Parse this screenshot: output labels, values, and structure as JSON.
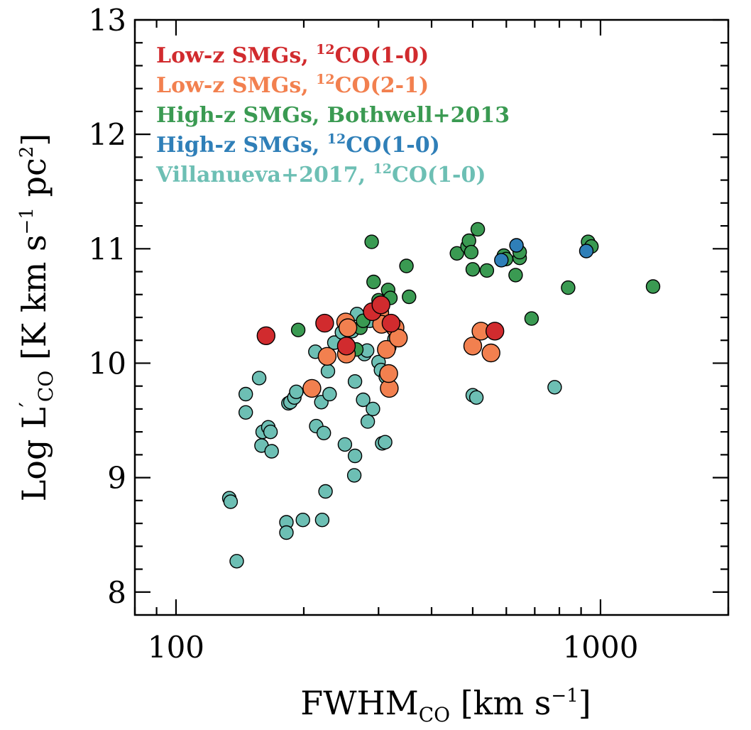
{
  "chart_data": {
    "type": "scatter",
    "xscale": "log",
    "xlim": [
      80,
      2000
    ],
    "ylim": [
      7.8,
      13.0
    ],
    "xticks": [
      {
        "value": 100,
        "label": "100"
      },
      {
        "value": 1000,
        "label": "1000"
      }
    ],
    "yticks": [
      {
        "value": 8,
        "label": "8"
      },
      {
        "value": 9,
        "label": "9"
      },
      {
        "value": 10,
        "label": "10"
      },
      {
        "value": 11,
        "label": "11"
      },
      {
        "value": 12,
        "label": "12"
      },
      {
        "value": 13,
        "label": "13"
      }
    ],
    "xlabel": {
      "main": "FWHM",
      "sub": "CO",
      "rest": " [km s",
      "sup": "−1",
      "end": "]"
    },
    "ylabel": {
      "main": "Log L",
      "prime": "′",
      "sub": "CO",
      "rest": " [K km s",
      "sup1": "−1",
      "mid": " pc",
      "sup2": "2",
      "end": "]"
    },
    "legend_position": "top-left",
    "series": [
      {
        "name": "Villanueva+2017, 12CO(1-0)",
        "legend": {
          "pre": "Villanueva+2017, ",
          "sup": "12",
          "post": "CO(1-0)"
        },
        "color": "#6dbfb4",
        "size": "small",
        "points": [
          [
            133.5,
            8.82
          ],
          [
            134.5,
            8.79
          ],
          [
            139,
            8.27
          ],
          [
            146,
            9.73
          ],
          [
            146,
            9.57
          ],
          [
            157,
            9.87
          ],
          [
            160,
            9.4
          ],
          [
            159,
            9.28
          ],
          [
            165,
            9.44
          ],
          [
            167,
            9.4
          ],
          [
            168,
            9.23
          ],
          [
            184,
            9.65
          ],
          [
            186,
            9.66
          ],
          [
            190,
            9.7
          ],
          [
            192,
            9.75
          ],
          [
            182,
            8.61
          ],
          [
            182,
            8.52
          ],
          [
            199,
            8.63
          ],
          [
            214,
            9.45
          ],
          [
            213,
            10.1
          ],
          [
            220,
            9.66
          ],
          [
            223,
            9.39
          ],
          [
            221,
            8.63
          ],
          [
            225,
            8.88
          ],
          [
            228,
            9.93
          ],
          [
            230,
            9.73
          ],
          [
            236,
            10.18
          ],
          [
            246,
            10.27
          ],
          [
            250,
            9.29
          ],
          [
            260,
            10.28
          ],
          [
            264,
            9.84
          ],
          [
            264,
            9.19
          ],
          [
            263,
            9.02
          ],
          [
            267,
            10.43
          ],
          [
            276,
            9.68
          ],
          [
            278,
            10.08
          ],
          [
            282,
            10.11
          ],
          [
            283,
            9.49
          ],
          [
            286,
            10.37
          ],
          [
            291,
            9.6
          ],
          [
            300,
            10.01
          ],
          [
            304,
            9.94
          ],
          [
            306,
            9.3
          ],
          [
            311,
            9.31
          ],
          [
            312,
            9.88
          ],
          [
            318,
            10.14
          ],
          [
            327,
            10.21
          ],
          [
            500,
            9.72
          ],
          [
            510,
            9.7
          ],
          [
            780,
            9.79
          ]
        ]
      },
      {
        "name": "High-z SMGs, Bothwell+2013",
        "legend": {
          "pre": "High-z SMGs, Bothwell+2013",
          "sup": "",
          "post": ""
        },
        "color": "#3a9a52",
        "size": "small",
        "points": [
          [
            194,
            10.29
          ],
          [
            266,
            10.12
          ],
          [
            272,
            10.31
          ],
          [
            276,
            10.37
          ],
          [
            289,
            11.06
          ],
          [
            292,
            10.71
          ],
          [
            300,
            10.55
          ],
          [
            316,
            10.64
          ],
          [
            320,
            10.57
          ],
          [
            349,
            10.85
          ],
          [
            354,
            10.58
          ],
          [
            459,
            10.96
          ],
          [
            486,
            11.02
          ],
          [
            490,
            11.07
          ],
          [
            496,
            10.97
          ],
          [
            500,
            10.82
          ],
          [
            514,
            11.17
          ],
          [
            540,
            10.81
          ],
          [
            592,
            10.94
          ],
          [
            599,
            10.91
          ],
          [
            631,
            10.77
          ],
          [
            645,
            10.92
          ],
          [
            645,
            10.97
          ],
          [
            688,
            10.39
          ],
          [
            839,
            10.66
          ],
          [
            935,
            11.06
          ],
          [
            952,
            11.02
          ],
          [
            1330,
            10.67
          ]
        ]
      },
      {
        "name": "High-z SMGs, 12CO(1-0)",
        "legend": {
          "pre": "High-z SMGs, ",
          "sup": "12",
          "post": "CO(1-0)"
        },
        "color": "#2f7fb8",
        "size": "small",
        "points": [
          [
            584,
            10.9
          ],
          [
            634,
            11.03
          ],
          [
            926,
            10.98
          ]
        ]
      },
      {
        "name": "Low-z SMGs, 12CO(2-1)",
        "legend": {
          "pre": "Low-z SMGs, ",
          "sup": "12",
          "post": "CO(2-1)"
        },
        "color": "#f2804f",
        "size": "large",
        "points": [
          [
            209,
            9.78
          ],
          [
            227,
            10.06
          ],
          [
            251,
            10.36
          ],
          [
            252,
            10.08
          ],
          [
            254,
            10.31
          ],
          [
            302,
            10.44
          ],
          [
            305,
            10.34
          ],
          [
            313,
            10.12
          ],
          [
            318,
            9.78
          ],
          [
            317,
            9.91
          ],
          [
            328,
            10.31
          ],
          [
            334,
            10.22
          ],
          [
            500,
            10.15
          ],
          [
            523,
            10.28
          ],
          [
            552,
            10.09
          ]
        ]
      },
      {
        "name": "Low-z SMGs, 12CO(1-0)",
        "legend": {
          "pre": "Low-z SMGs, ",
          "sup": "12",
          "post": "CO(1-0)"
        },
        "color": "#d12b2e",
        "size": "large",
        "points": [
          [
            163,
            10.24
          ],
          [
            224,
            10.35
          ],
          [
            252,
            10.15
          ],
          [
            290,
            10.45
          ],
          [
            304,
            10.51
          ],
          [
            321,
            10.35
          ],
          [
            564,
            10.28
          ]
        ]
      }
    ],
    "legend_order": [
      4,
      3,
      1,
      2,
      0
    ]
  }
}
